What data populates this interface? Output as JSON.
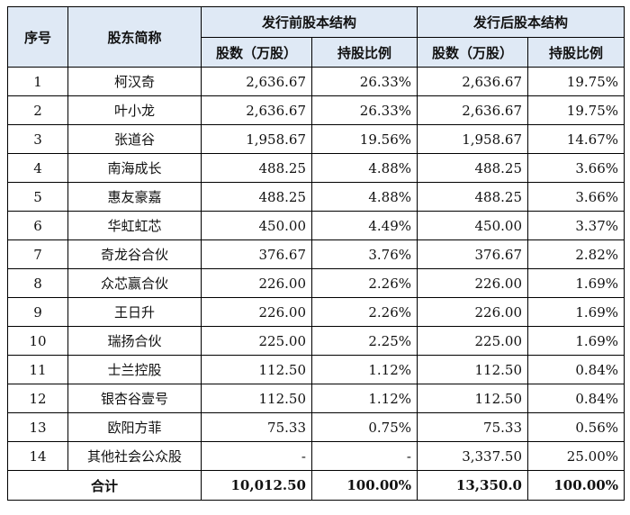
{
  "headers": {
    "seq": "序号",
    "name": "股东简称",
    "pre_group": "发行前股本结构",
    "post_group": "发行后股本结构",
    "pre_shares": "股数（万股）",
    "pre_ratio": "持股比例",
    "post_shares": "股数（万股）",
    "post_ratio": "持股比例"
  },
  "rows": [
    {
      "seq": "1",
      "name": "柯汉奇",
      "pre_shares": "2,636.67",
      "pre_ratio": "26.33%",
      "post_shares": "2,636.67",
      "post_ratio": "19.75%"
    },
    {
      "seq": "2",
      "name": "叶小龙",
      "pre_shares": "2,636.67",
      "pre_ratio": "26.33%",
      "post_shares": "2,636.67",
      "post_ratio": "19.75%"
    },
    {
      "seq": "3",
      "name": "张道谷",
      "pre_shares": "1,958.67",
      "pre_ratio": "19.56%",
      "post_shares": "1,958.67",
      "post_ratio": "14.67%"
    },
    {
      "seq": "4",
      "name": "南海成长",
      "pre_shares": "488.25",
      "pre_ratio": "4.88%",
      "post_shares": "488.25",
      "post_ratio": "3.66%"
    },
    {
      "seq": "5",
      "name": "惠友豪嘉",
      "pre_shares": "488.25",
      "pre_ratio": "4.88%",
      "post_shares": "488.25",
      "post_ratio": "3.66%"
    },
    {
      "seq": "6",
      "name": "华虹虹芯",
      "pre_shares": "450.00",
      "pre_ratio": "4.49%",
      "post_shares": "450.00",
      "post_ratio": "3.37%"
    },
    {
      "seq": "7",
      "name": "奇龙谷合伙",
      "pre_shares": "376.67",
      "pre_ratio": "3.76%",
      "post_shares": "376.67",
      "post_ratio": "2.82%"
    },
    {
      "seq": "8",
      "name": "众芯赢合伙",
      "pre_shares": "226.00",
      "pre_ratio": "2.26%",
      "post_shares": "226.00",
      "post_ratio": "1.69%"
    },
    {
      "seq": "9",
      "name": "王日升",
      "pre_shares": "226.00",
      "pre_ratio": "2.26%",
      "post_shares": "226.00",
      "post_ratio": "1.69%"
    },
    {
      "seq": "10",
      "name": "瑞扬合伙",
      "pre_shares": "225.00",
      "pre_ratio": "2.25%",
      "post_shares": "225.00",
      "post_ratio": "1.69%"
    },
    {
      "seq": "11",
      "name": "士兰控股",
      "pre_shares": "112.50",
      "pre_ratio": "1.12%",
      "post_shares": "112.50",
      "post_ratio": "0.84%"
    },
    {
      "seq": "12",
      "name": "银杏谷壹号",
      "pre_shares": "112.50",
      "pre_ratio": "1.12%",
      "post_shares": "112.50",
      "post_ratio": "0.84%"
    },
    {
      "seq": "13",
      "name": "欧阳方菲",
      "pre_shares": "75.33",
      "pre_ratio": "0.75%",
      "post_shares": "75.33",
      "post_ratio": "0.56%"
    },
    {
      "seq": "14",
      "name": "其他社会公众股",
      "pre_shares": "-",
      "pre_ratio": "-",
      "post_shares": "3,337.50",
      "post_ratio": "25.00%"
    }
  ],
  "total": {
    "label": "合计",
    "pre_shares": "10,012.50",
    "pre_ratio": "100.00%",
    "post_shares": "13,350.0",
    "post_ratio": "100.00%"
  }
}
